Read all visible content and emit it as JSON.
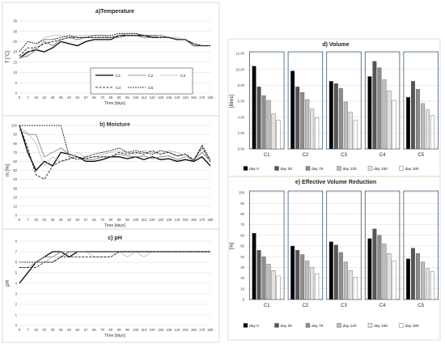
{
  "chart_data": [
    {
      "type": "line",
      "title": "a)Temperature",
      "xlabel": "Time [days]",
      "ylabel": "T [°C]",
      "x": [
        0,
        7,
        15,
        22,
        30,
        35,
        40,
        50,
        57,
        65,
        70,
        80,
        90,
        95,
        100,
        110,
        120,
        128,
        135,
        140,
        150,
        160,
        170,
        180
      ],
      "ylim": [
        0,
        35
      ],
      "yticks": [
        0,
        5,
        10,
        15,
        20,
        25,
        30,
        35
      ],
      "series": [
        {
          "name": "C1",
          "style": "solid-thick",
          "values": [
            17,
            20,
            21,
            20,
            22,
            25,
            24,
            23,
            25,
            26,
            26,
            26,
            28,
            28,
            28,
            28,
            27,
            27,
            27,
            26,
            26,
            23,
            23,
            23
          ]
        },
        {
          "name": "C2",
          "style": "solid-gray",
          "values": [
            17,
            18,
            21,
            25,
            23,
            26,
            27,
            26,
            27,
            27,
            27,
            27,
            27,
            28,
            28,
            27,
            27,
            27,
            27,
            26,
            26,
            23,
            23,
            23
          ]
        },
        {
          "name": "C3",
          "style": "solid-light",
          "values": [
            17,
            19,
            23,
            27,
            28,
            28,
            27,
            28,
            28,
            28,
            28,
            27,
            28,
            29,
            29,
            28,
            28,
            27,
            27,
            27,
            26,
            24,
            23,
            23
          ]
        },
        {
          "name": "C4",
          "style": "dashed",
          "values": [
            18,
            22,
            22,
            24,
            25,
            26,
            27,
            27,
            27,
            27,
            27,
            27,
            28,
            28,
            28,
            28,
            27,
            27,
            27,
            26,
            26,
            24,
            23,
            23
          ]
        },
        {
          "name": "C5",
          "style": "dashed-short",
          "values": [
            20,
            25,
            24,
            26,
            26,
            27,
            28,
            27,
            27,
            28,
            28,
            28,
            29,
            29,
            29,
            28,
            28,
            28,
            27,
            26,
            26,
            24,
            23,
            23
          ]
        }
      ]
    },
    {
      "type": "line",
      "title": "b) Moisture",
      "xlabel": "Time [days]",
      "ylabel": "m [%]",
      "x": [
        0,
        7,
        15,
        22,
        30,
        35,
        40,
        50,
        57,
        65,
        70,
        80,
        90,
        95,
        100,
        110,
        120,
        128,
        135,
        140,
        150,
        160,
        170,
        180
      ],
      "ylim": [
        0,
        100
      ],
      "yticks": [
        0,
        10,
        20,
        30,
        40,
        50,
        60,
        70,
        80,
        90,
        100
      ],
      "series": [
        {
          "name": "C1",
          "values": [
            100,
            70,
            50,
            60,
            55,
            70,
            68,
            65,
            60,
            60,
            62,
            65,
            65,
            63,
            65,
            62,
            65,
            62,
            63,
            60,
            62,
            60,
            65,
            55
          ]
        },
        {
          "name": "C2",
          "values": [
            95,
            90,
            90,
            65,
            70,
            75,
            68,
            65,
            62,
            62,
            65,
            65,
            68,
            66,
            65,
            66,
            63,
            65,
            66,
            62,
            65,
            62,
            70,
            60
          ]
        },
        {
          "name": "C3",
          "values": [
            98,
            92,
            80,
            55,
            65,
            60,
            62,
            70,
            65,
            65,
            68,
            70,
            72,
            70,
            68,
            72,
            70,
            68,
            72,
            70,
            65,
            62,
            78,
            58
          ]
        },
        {
          "name": "C4",
          "values": [
            100,
            75,
            45,
            40,
            55,
            60,
            63,
            65,
            63,
            65,
            65,
            65,
            70,
            68,
            70,
            68,
            72,
            68,
            70,
            66,
            68,
            62,
            75,
            60
          ]
        },
        {
          "name": "C5",
          "values": [
            100,
            100,
            100,
            100,
            100,
            100,
            65,
            62,
            65,
            68,
            70,
            72,
            75,
            70,
            72,
            70,
            68,
            72,
            70,
            66,
            68,
            60,
            78,
            62
          ]
        }
      ]
    },
    {
      "type": "line",
      "title": "c) pH",
      "xlabel": "Time [days]",
      "ylabel": "pH",
      "x": [
        0,
        7,
        15,
        22,
        30,
        35,
        40,
        50,
        57,
        65,
        70,
        80,
        90,
        95,
        100,
        110,
        120,
        128,
        135,
        140,
        150,
        160,
        170,
        180
      ],
      "ylim": [
        0,
        8
      ],
      "yticks": [
        0,
        1,
        2,
        3,
        4,
        5,
        6,
        7,
        8
      ],
      "series": [
        {
          "name": "C1",
          "values": [
            4,
            5,
            6,
            6.5,
            7,
            7,
            6.5,
            7,
            7,
            7,
            7,
            7,
            7,
            7,
            7,
            7,
            7,
            7,
            7,
            7,
            7,
            7,
            7,
            7
          ]
        },
        {
          "name": "C2",
          "values": [
            5.5,
            5.5,
            6,
            6.5,
            6.5,
            7,
            7,
            7,
            7,
            7,
            7,
            7,
            7,
            7,
            7,
            7,
            7,
            7,
            7,
            7,
            7,
            7,
            7,
            7
          ]
        },
        {
          "name": "C3",
          "values": [
            5.5,
            5.5,
            6,
            6,
            6.5,
            6.5,
            7,
            7,
            7,
            6.5,
            6.5,
            6.5,
            7,
            6.5,
            7,
            6.5,
            7,
            7,
            7,
            7,
            7,
            7,
            7,
            7
          ]
        },
        {
          "name": "C4",
          "values": [
            5.5,
            5.5,
            5.5,
            6,
            6,
            6.5,
            6.5,
            6.5,
            6.5,
            6.5,
            6.5,
            6.5,
            7,
            7,
            7,
            7,
            7,
            7,
            7,
            7,
            7,
            7,
            7,
            7
          ]
        },
        {
          "name": "C5",
          "values": [
            6,
            6,
            6,
            6,
            6,
            6.5,
            7,
            7,
            7,
            7,
            7,
            7,
            7,
            7,
            7,
            7,
            7,
            7,
            7,
            7,
            7,
            7,
            7,
            7
          ]
        }
      ]
    },
    {
      "type": "bar",
      "title": "d) Volume",
      "ylabel": "[litres]",
      "categories": [
        "C1",
        "C2",
        "C3",
        "C4",
        "C5"
      ],
      "ylim": [
        0,
        12
      ],
      "yticks": [
        "0.00",
        "2.00",
        "4.00",
        "6.00",
        "8.00",
        "10.00",
        "12.00"
      ],
      "series": [
        {
          "name": "day 0",
          "color": "#000000",
          "values": [
            10.4,
            9.8,
            8.5,
            9.1,
            6.5
          ]
        },
        {
          "name": "day 30",
          "color": "#555555",
          "values": [
            7.8,
            7.8,
            8.2,
            11.0,
            8.5
          ]
        },
        {
          "name": "day 75",
          "color": "#8c8c8c",
          "values": [
            6.7,
            7.1,
            7.6,
            10.2,
            7.5
          ]
        },
        {
          "name": "day 120",
          "color": "#bdbdbd",
          "values": [
            6.1,
            6.2,
            5.9,
            8.7,
            5.7
          ]
        },
        {
          "name": "day 150",
          "color": "#e2e2e2",
          "values": [
            4.4,
            5.0,
            4.6,
            7.3,
            4.9
          ]
        },
        {
          "name": "day 180",
          "color": "#ffffff",
          "values": [
            3.6,
            3.9,
            3.6,
            6.1,
            4.2
          ]
        }
      ]
    },
    {
      "type": "bar",
      "title": "e) Effective Volume Reduction",
      "ylabel": "[%]",
      "categories": [
        "C1",
        "C2",
        "C3",
        "C4",
        "C5"
      ],
      "ylim": [
        0,
        100
      ],
      "yticks": [
        0,
        10,
        20,
        30,
        40,
        50,
        60,
        70,
        80,
        90,
        100
      ],
      "series": [
        {
          "name": "day 0",
          "color": "#000000",
          "values": [
            62,
            50,
            54,
            57,
            38
          ]
        },
        {
          "name": "day 30",
          "color": "#555555",
          "values": [
            46,
            46,
            51,
            66,
            48
          ]
        },
        {
          "name": "day 75",
          "color": "#8c8c8c",
          "values": [
            40,
            42,
            44,
            60,
            43
          ]
        },
        {
          "name": "day 120",
          "color": "#bdbdbd",
          "values": [
            33,
            36,
            35,
            52,
            35
          ]
        },
        {
          "name": "day 150",
          "color": "#e2e2e2",
          "values": [
            27,
            30,
            27,
            43,
            29
          ]
        },
        {
          "name": "day 180",
          "color": "#ffffff",
          "values": [
            22,
            24,
            21,
            36,
            26
          ]
        }
      ]
    }
  ]
}
